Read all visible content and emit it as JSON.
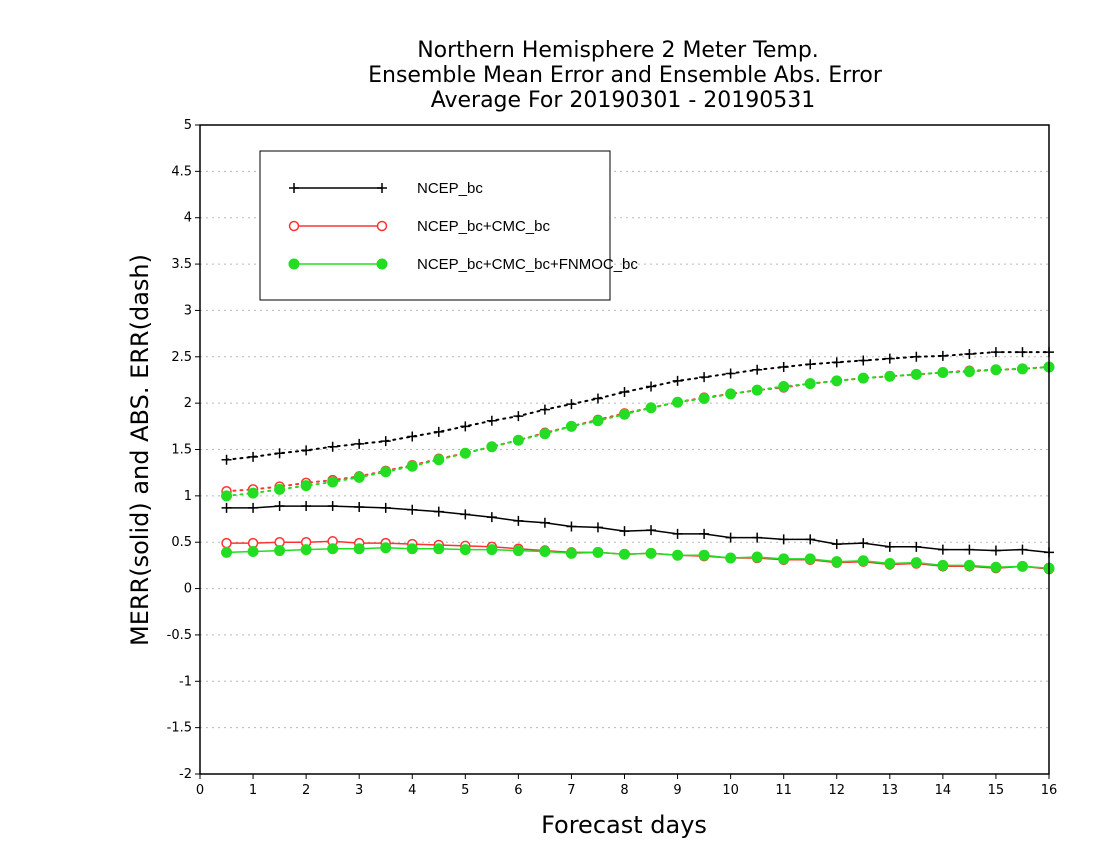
{
  "chart_data": {
    "type": "line",
    "title": [
      "Northern Hemisphere 2 Meter Temp.",
      "Ensemble Mean Error and Ensemble Abs. Error",
      "Average For 20190301 - 20190531"
    ],
    "xlabel": "Forecast days",
    "ylabel": "MERR(solid) and ABS. ERR(dash)",
    "xlim": [
      0,
      16
    ],
    "ylim": [
      -2,
      5
    ],
    "xticks": [
      "0",
      "1",
      "2",
      "3",
      "4",
      "5",
      "6",
      "7",
      "8",
      "9",
      "10",
      "11",
      "12",
      "13",
      "14",
      "15",
      "16"
    ],
    "yticks": [
      "-2",
      "-1.5",
      "-1",
      "-0.5",
      "0",
      "0.5",
      "1",
      "1.5",
      "2",
      "2.5",
      "3",
      "3.5",
      "4",
      "4.5",
      "5"
    ],
    "grid": true,
    "legend_position": "top-left",
    "x": [
      0.5,
      1,
      1.5,
      2,
      2.5,
      3,
      3.5,
      4,
      4.5,
      5,
      5.5,
      6,
      6.5,
      7,
      7.5,
      8,
      8.5,
      9,
      9.5,
      10,
      10.5,
      11,
      11.5,
      12,
      12.5,
      13,
      13.5,
      14,
      14.5,
      15,
      15.5,
      16
    ],
    "series": [
      {
        "name": "NCEP_bc",
        "color": "#000000",
        "marker": "plus",
        "merr": [
          0.87,
          0.87,
          0.89,
          0.89,
          0.89,
          0.88,
          0.87,
          0.85,
          0.83,
          0.8,
          0.77,
          0.73,
          0.71,
          0.67,
          0.66,
          0.62,
          0.63,
          0.59,
          0.59,
          0.55,
          0.55,
          0.53,
          0.53,
          0.48,
          0.49,
          0.45,
          0.45,
          0.42,
          0.42,
          0.41,
          0.42,
          0.39
        ],
        "abs_err": [
          1.39,
          1.42,
          1.46,
          1.49,
          1.53,
          1.56,
          1.59,
          1.64,
          1.69,
          1.75,
          1.81,
          1.86,
          1.93,
          1.99,
          2.05,
          2.12,
          2.18,
          2.24,
          2.28,
          2.32,
          2.36,
          2.39,
          2.42,
          2.44,
          2.46,
          2.48,
          2.5,
          2.51,
          2.53,
          2.55,
          2.55,
          2.55
        ]
      },
      {
        "name": "NCEP_bc+CMC_bc",
        "color": "#ff3333",
        "marker": "open-circle",
        "merr": [
          0.49,
          0.49,
          0.5,
          0.5,
          0.51,
          0.49,
          0.49,
          0.48,
          0.47,
          0.46,
          0.45,
          0.43,
          0.41,
          0.39,
          0.39,
          0.37,
          0.38,
          0.36,
          0.35,
          0.33,
          0.33,
          0.31,
          0.31,
          0.28,
          0.29,
          0.26,
          0.27,
          0.24,
          0.24,
          0.22,
          0.24,
          0.21
        ],
        "abs_err": [
          1.05,
          1.07,
          1.1,
          1.14,
          1.17,
          1.21,
          1.27,
          1.33,
          1.4,
          1.46,
          1.53,
          1.6,
          1.68,
          1.75,
          1.82,
          1.89,
          1.95,
          2.01,
          2.06,
          2.1,
          2.14,
          2.17,
          2.21,
          2.24,
          2.27,
          2.29,
          2.31,
          2.33,
          2.35,
          2.36,
          2.37,
          2.39
        ]
      },
      {
        "name": "NCEP_bc+CMC_bc+FNMOC_bc",
        "color": "#22dd22",
        "marker": "filled-circle",
        "merr": [
          0.39,
          0.4,
          0.41,
          0.42,
          0.43,
          0.43,
          0.44,
          0.43,
          0.43,
          0.42,
          0.42,
          0.41,
          0.4,
          0.38,
          0.39,
          0.37,
          0.38,
          0.36,
          0.36,
          0.33,
          0.34,
          0.32,
          0.32,
          0.29,
          0.3,
          0.27,
          0.28,
          0.25,
          0.25,
          0.23,
          0.24,
          0.22
        ],
        "abs_err": [
          1.0,
          1.03,
          1.07,
          1.11,
          1.15,
          1.2,
          1.26,
          1.32,
          1.39,
          1.46,
          1.53,
          1.6,
          1.67,
          1.75,
          1.81,
          1.88,
          1.95,
          2.01,
          2.05,
          2.1,
          2.14,
          2.18,
          2.21,
          2.24,
          2.27,
          2.29,
          2.31,
          2.33,
          2.34,
          2.36,
          2.37,
          2.39
        ]
      }
    ]
  }
}
